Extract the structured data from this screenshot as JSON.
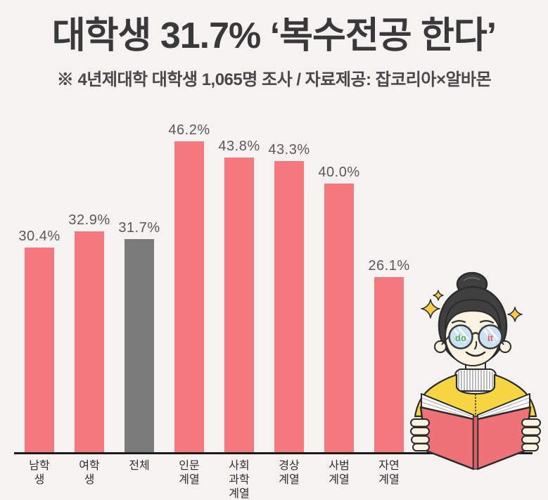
{
  "header": {
    "title": "대학생 31.7% ‘복수전공 한다’",
    "subtitle": "※ 4년제대학 대학생 1,065명 조사 / 자료제공: 잡코리아×알바몬"
  },
  "chart_data": {
    "type": "bar",
    "title": "대학생 31.7% ‘복수전공 한다’",
    "subtitle": "※ 4년제대학 대학생 1,065명 조사 / 자료제공: 잡코리아×알바몬",
    "categories": [
      "남학생",
      "여학생",
      "전체",
      "인문계열",
      "사회과학\n계열",
      "경상계열",
      "사범계열",
      "자연계열"
    ],
    "values": [
      30.4,
      32.9,
      31.7,
      46.2,
      43.8,
      43.3,
      40.0,
      26.1
    ],
    "value_labels": [
      "30.4%",
      "32.9%",
      "31.7%",
      "46.2%",
      "43.8%",
      "43.3%",
      "40.0%",
      "26.1%"
    ],
    "value_suffix": "%",
    "highlight_index": 2,
    "bar_color": "#F3797E",
    "highlight_color": "#7A7A7A",
    "background": "#F7F2F2",
    "axis_color": "#1C1C1C",
    "ylim": [
      0,
      50
    ],
    "grid": false,
    "legend": "none",
    "xlabel": "",
    "ylabel": ""
  },
  "mascot": {
    "glasses_text_left": "do",
    "glasses_text_right": "it",
    "colors": {
      "hair": "#404040",
      "skin": "#FBF2E2",
      "jacket": "#F7D644",
      "book": "#EE7277",
      "book_spine": "#D96065",
      "lens": "#C9E3F5",
      "do_text": "#5FAE53",
      "it_text": "#E8575E",
      "sparkle": "#F5CB48",
      "outline": "#2B2B2B"
    }
  }
}
